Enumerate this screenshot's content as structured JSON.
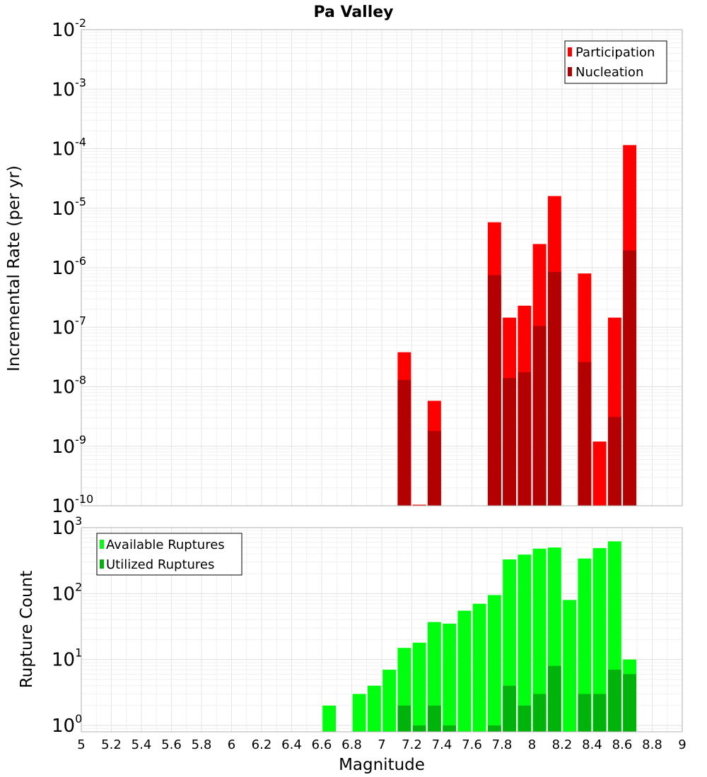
{
  "page_title": "Pa Valley",
  "x_axis": {
    "label": "Magnitude",
    "min": 5,
    "max": 9,
    "ticks": [
      "5",
      "5.2",
      "5.4",
      "5.6",
      "5.8",
      "6",
      "6.2",
      "6.4",
      "6.6",
      "6.8",
      "7",
      "7.2",
      "7.4",
      "7.6",
      "7.8",
      "8",
      "8.2",
      "8.4",
      "8.6",
      "8.8",
      "9"
    ]
  },
  "chart_data": [
    {
      "type": "bar",
      "title": "Pa Valley",
      "xlabel": "Magnitude",
      "ylabel": "Incremental Rate (per yr)",
      "yscale": "log",
      "ylim": [
        1e-10,
        0.01
      ],
      "xlim": [
        5,
        9
      ],
      "bin_width": 0.1,
      "y_ticks": [
        {
          "base": "10",
          "exp": "-10"
        },
        {
          "base": "10",
          "exp": "-9"
        },
        {
          "base": "10",
          "exp": "-8"
        },
        {
          "base": "10",
          "exp": "-7"
        },
        {
          "base": "10",
          "exp": "-6"
        },
        {
          "base": "10",
          "exp": "-5"
        },
        {
          "base": "10",
          "exp": "-4"
        },
        {
          "base": "10",
          "exp": "-3"
        },
        {
          "base": "10",
          "exp": "-2"
        }
      ],
      "legend_position": "top-right",
      "grid": true,
      "x": [
        7.15,
        7.25,
        7.35,
        7.75,
        7.85,
        7.95,
        8.05,
        8.15,
        8.35,
        8.45,
        8.55,
        8.65
      ],
      "series": [
        {
          "name": "Participation",
          "color": "#ff0000",
          "values": [
            3.8e-08,
            1e-10,
            5.8e-09,
            5.8e-06,
            1.45e-07,
            2.3e-07,
            2.5e-06,
            1.6e-05,
            8e-07,
            1.2e-09,
            1.45e-07,
            0.000115
          ]
        },
        {
          "name": "Nucleation",
          "color": "#b30000",
          "values": [
            1.3e-08,
            null,
            1.8e-09,
            7.5e-07,
            1.4e-08,
            1.75e-08,
            1.05e-07,
            8.5e-07,
            2.6e-08,
            null,
            3.1e-09,
            1.95e-06
          ]
        }
      ]
    },
    {
      "type": "bar",
      "title": "",
      "xlabel": "Magnitude",
      "ylabel": "Rupture Count",
      "yscale": "log",
      "ylim": [
        0.8,
        1000
      ],
      "xlim": [
        5,
        9
      ],
      "bin_width": 0.1,
      "y_ticks": [
        {
          "base": "10",
          "exp": "0"
        },
        {
          "base": "10",
          "exp": "1"
        },
        {
          "base": "10",
          "exp": "2"
        },
        {
          "base": "10",
          "exp": "3"
        }
      ],
      "legend_position": "top-left",
      "grid": true,
      "x": [
        6.65,
        6.85,
        6.95,
        7.05,
        7.15,
        7.25,
        7.35,
        7.45,
        7.55,
        7.65,
        7.75,
        7.85,
        7.95,
        8.05,
        8.15,
        8.25,
        8.35,
        8.45,
        8.55,
        8.65
      ],
      "series": [
        {
          "name": "Available Ruptures",
          "color": "#00ff0f",
          "values": [
            2,
            3,
            4,
            7,
            15,
            18,
            37,
            35,
            55,
            70,
            95,
            330,
            390,
            480,
            500,
            80,
            340,
            490,
            620,
            10
          ]
        },
        {
          "name": "Utilized Ruptures",
          "color": "#00b30a",
          "values": [
            null,
            null,
            null,
            null,
            2,
            1,
            2,
            1,
            null,
            null,
            1,
            4,
            2,
            3,
            8,
            null,
            3,
            3,
            7,
            6
          ]
        }
      ]
    }
  ]
}
